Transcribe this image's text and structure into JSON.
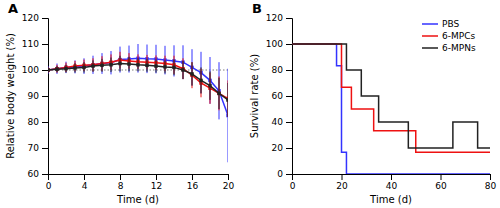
{
  "chart_data": [
    {
      "type": "line",
      "title": "A",
      "xlabel": "Time (d)",
      "ylabel": "Relative body weight (%)",
      "x": [
        0,
        1,
        2,
        3,
        4,
        5,
        6,
        7,
        8,
        9,
        10,
        11,
        12,
        13,
        14,
        15,
        16,
        17,
        18,
        19,
        20
      ],
      "series": [
        {
          "color": "#3333FF",
          "marker": "square",
          "values": [
            100,
            100.5,
            101,
            101.2,
            101.5,
            102,
            102.5,
            102.8,
            104,
            104.2,
            104.5,
            104.3,
            104.2,
            103.8,
            103.5,
            103.0,
            101.0,
            99.0,
            96.0,
            92.0,
            82.5
          ],
          "errors": [
            1.5,
            2.0,
            2.2,
            2.5,
            3.0,
            3.5,
            4.0,
            4.5,
            5.0,
            5.2,
            5.5,
            5.5,
            5.5,
            5.5,
            6.0,
            6.5,
            7.0,
            8.0,
            9.0,
            11.0,
            18.0
          ]
        },
        {
          "color": "#EE1111",
          "marker": "square",
          "values": [
            100,
            100.5,
            101,
            101.5,
            101.8,
            102.0,
            102.5,
            103.0,
            103.8,
            103.5,
            103.2,
            103.0,
            102.8,
            102.5,
            102.0,
            100.5,
            98.0,
            95.0,
            93.0,
            91.0,
            89.0
          ],
          "errors": [
            1.0,
            1.5,
            1.8,
            2.0,
            2.2,
            2.5,
            2.8,
            3.0,
            3.2,
            3.0,
            2.8,
            2.8,
            2.8,
            3.0,
            3.5,
            4.0,
            5.0,
            5.5,
            6.0,
            6.5,
            7.0
          ]
        },
        {
          "color": "#222222",
          "marker": "square",
          "values": [
            100,
            100.3,
            100.5,
            100.8,
            101.0,
            101.5,
            101.8,
            102.0,
            102.5,
            102.3,
            102.0,
            101.8,
            101.5,
            101.2,
            101.0,
            100.0,
            98.5,
            96.0,
            94.0,
            91.0,
            88.5
          ],
          "errors": [
            0.8,
            1.2,
            1.5,
            1.8,
            2.0,
            2.2,
            2.5,
            2.8,
            3.0,
            2.8,
            2.5,
            2.5,
            2.5,
            2.5,
            3.0,
            3.5,
            4.5,
            5.0,
            5.5,
            6.0,
            6.5
          ]
        }
      ],
      "xlim": [
        0,
        20
      ],
      "ylim": [
        60,
        120
      ],
      "xticks": [
        0,
        4,
        8,
        12,
        16,
        20
      ],
      "yticks": [
        60,
        70,
        80,
        90,
        100,
        110,
        120
      ],
      "reference_y": 100
    },
    {
      "type": "step",
      "title": "B",
      "xlabel": "Time (d)",
      "ylabel": "Survival rate (%)",
      "series": [
        {
          "name": "PBS",
          "color": "#3333FF",
          "x": [
            0,
            18,
            18,
            20,
            20,
            22,
            22,
            80
          ],
          "values": [
            100,
            100,
            83.3,
            83.3,
            16.7,
            16.7,
            0,
            0
          ]
        },
        {
          "name": "6-MPCs",
          "color": "#EE1111",
          "x": [
            0,
            20,
            20,
            24,
            24,
            33,
            33,
            50,
            50,
            80
          ],
          "values": [
            100,
            100,
            66.7,
            66.7,
            50.0,
            50.0,
            33.3,
            33.3,
            16.7,
            16.7
          ]
        },
        {
          "name": "6-MPNs",
          "color": "#222222",
          "x": [
            0,
            22,
            22,
            28,
            28,
            35,
            35,
            47,
            47,
            65,
            65,
            75,
            75,
            80
          ],
          "values": [
            100,
            100,
            80,
            80,
            60,
            60,
            40,
            40,
            20,
            20,
            40,
            40,
            20,
            20
          ]
        }
      ],
      "xlim": [
        0,
        80
      ],
      "ylim": [
        0,
        120
      ],
      "xticks": [
        0,
        20,
        40,
        60,
        80
      ],
      "yticks": [
        0,
        20,
        40,
        60,
        80,
        100,
        120
      ],
      "legend": "upper right"
    }
  ]
}
